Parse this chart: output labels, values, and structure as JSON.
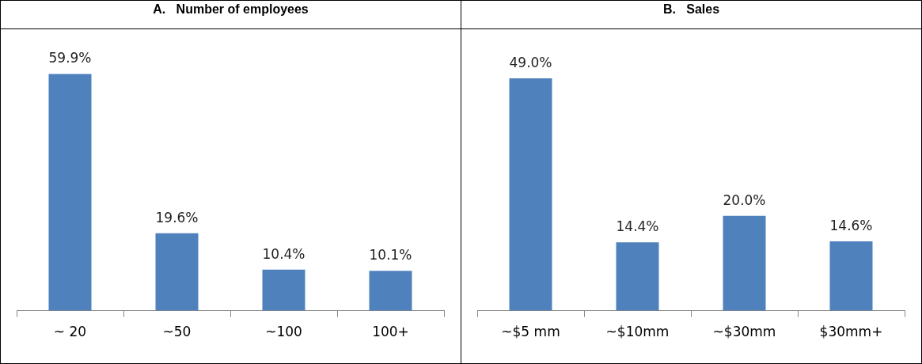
{
  "chart_data": [
    {
      "type": "bar",
      "title": "A.   Number of employees",
      "categories": [
        "~ 20",
        "~50",
        "~100",
        "100+"
      ],
      "values": [
        59.9,
        19.6,
        10.4,
        10.1
      ],
      "color": "#4f81bd",
      "value_labels": [
        "59.9%",
        "19.6%",
        "10.4%",
        "10.1%"
      ]
    },
    {
      "type": "bar",
      "title": "B.   Sales",
      "categories": [
        "~$5 mm",
        "~$10mm",
        "~$30mm",
        "$30mm+"
      ],
      "values": [
        49.0,
        14.4,
        20.0,
        14.6
      ],
      "color": "#4f81bd",
      "value_labels": [
        "49.0%",
        "14.4%",
        "20.0%",
        "14.6%"
      ]
    }
  ]
}
